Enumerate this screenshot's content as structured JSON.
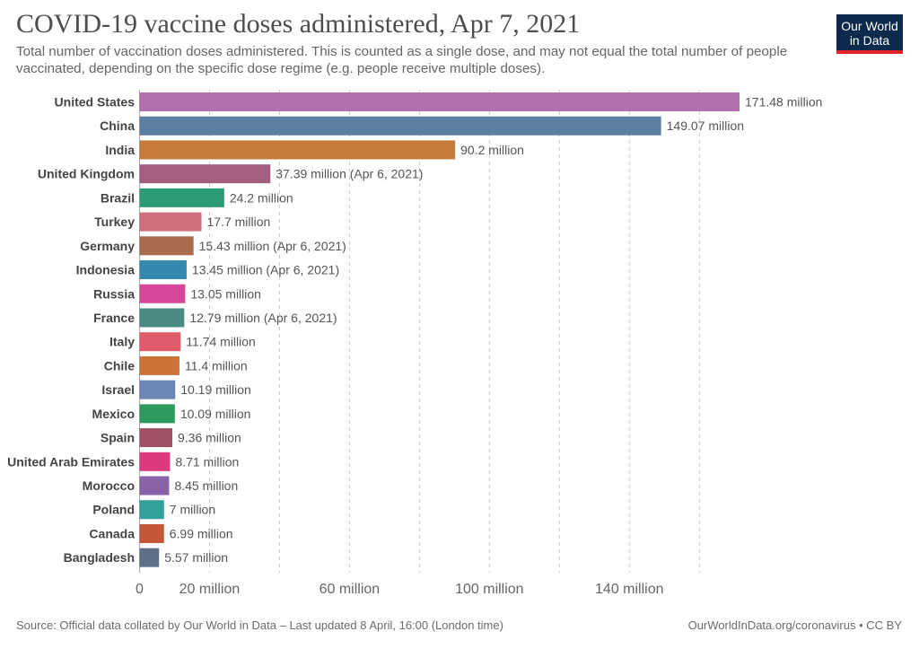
{
  "title": "COVID-19 vaccine doses administered, Apr 7, 2021",
  "subtitle": "Total number of vaccination doses administered. This is counted as a single dose, and may not equal the total number of people vaccinated, depending on the specific dose regime (e.g. people receive multiple doses).",
  "logo": {
    "line1": "Our World",
    "line2": "in Data",
    "bg_color": "#0c2a4b",
    "accent_color": "#e0242a"
  },
  "footer": {
    "source": "Source: Official data collated by Our World in Data – Last updated 8 April, 16:00 (London time)",
    "link": "OurWorldInData.org/coronavirus • CC BY"
  },
  "chart_data": {
    "type": "bar",
    "orientation": "horizontal",
    "unit": "million",
    "xlim": [
      0,
      171.48
    ],
    "grid": "vertical dashed",
    "categories": [
      "United States",
      "China",
      "India",
      "United Kingdom",
      "Brazil",
      "Turkey",
      "Germany",
      "Indonesia",
      "Russia",
      "France",
      "Italy",
      "Chile",
      "Israel",
      "Mexico",
      "Spain",
      "United Arab Emirates",
      "Morocco",
      "Poland",
      "Canada",
      "Bangladesh"
    ],
    "values": [
      171.48,
      149.07,
      90.2,
      37.39,
      24.2,
      17.7,
      15.43,
      13.45,
      13.05,
      12.79,
      11.74,
      11.4,
      10.19,
      10.09,
      9.36,
      8.71,
      8.45,
      7,
      6.99,
      5.57
    ],
    "value_labels": [
      "171.48 million",
      "149.07 million",
      "90.2 million",
      "37.39 million (Apr 6, 2021)",
      "24.2 million",
      "17.7 million",
      "15.43 million (Apr 6, 2021)",
      "13.45 million (Apr 6, 2021)",
      "13.05 million",
      "12.79 million (Apr 6, 2021)",
      "11.74 million",
      "11.4 million",
      "10.19 million",
      "10.09 million",
      "9.36 million",
      "8.71 million",
      "8.45 million",
      "7 million",
      "6.99 million",
      "5.57 million"
    ],
    "colors": [
      "#b16fad",
      "#5b7fa0",
      "#c57b3c",
      "#a3607e",
      "#2d9a78",
      "#d06e80",
      "#a86b4d",
      "#338aae",
      "#d64799",
      "#4a8a80",
      "#e05a6b",
      "#cc7339",
      "#6c86b5",
      "#2e9a5e",
      "#a05060",
      "#dc3a7c",
      "#8a62a8",
      "#32a19a",
      "#c4563a",
      "#5e6f88"
    ],
    "ticks": [
      0,
      20,
      60,
      100,
      140
    ],
    "tick_labels": [
      "0",
      "20 million",
      "60 million",
      "100 million",
      "140 million"
    ],
    "gridlines": [
      20,
      40,
      60,
      80,
      100,
      120,
      140,
      160
    ]
  }
}
